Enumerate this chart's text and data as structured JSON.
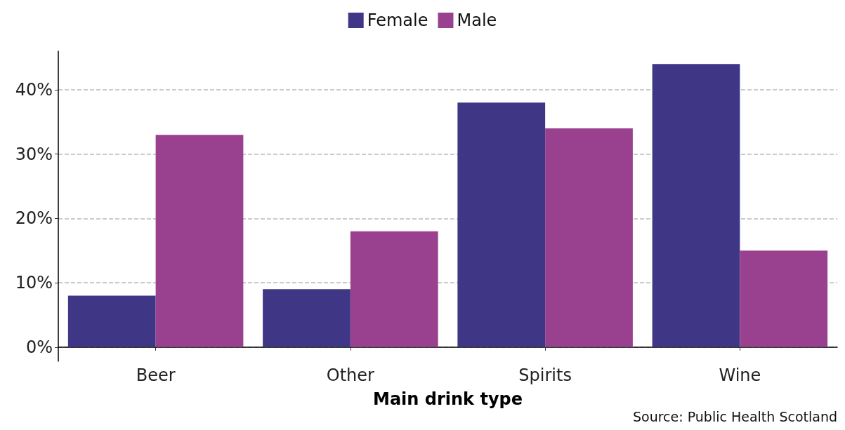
{
  "chart_data": {
    "type": "bar",
    "xlabel": "Main drink type",
    "categories": [
      "Beer",
      "Other",
      "Spirits",
      "Wine"
    ],
    "series": [
      {
        "name": "Female",
        "color": "#3f3786",
        "values": [
          8,
          9,
          38,
          44
        ]
      },
      {
        "name": "Male",
        "color": "#99418f",
        "values": [
          33,
          18,
          34,
          15
        ]
      }
    ],
    "ylim": [
      -2.2,
      46
    ],
    "yticks": [
      {
        "value": 0,
        "label": "0%"
      },
      {
        "value": 10,
        "label": "10%"
      },
      {
        "value": 20,
        "label": "20%"
      },
      {
        "value": 30,
        "label": "30%"
      },
      {
        "value": 40,
        "label": "40%"
      }
    ],
    "grid": "y",
    "legend": "top",
    "annotations": [
      "Source: Public Health Scotland"
    ]
  }
}
